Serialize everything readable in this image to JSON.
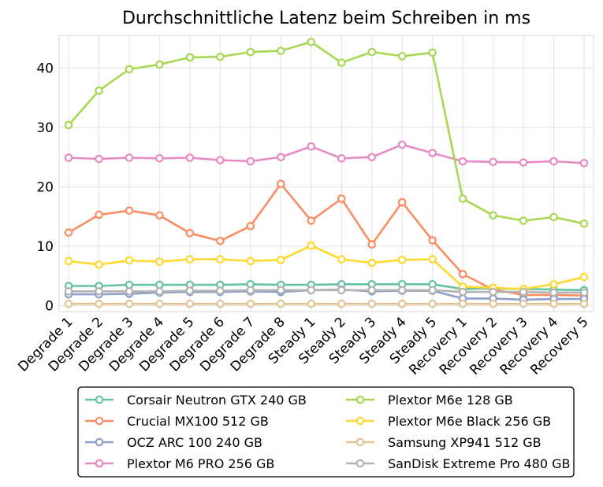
{
  "chart_data": {
    "type": "line",
    "title": "Durchschnittliche Latenz beim Schreiben in ms",
    "xlabel": "",
    "ylabel": "",
    "ylim": [
      -1,
      45.5
    ],
    "yticks": [
      0,
      10,
      20,
      30,
      40
    ],
    "grid": true,
    "legend_position": "bottom",
    "categories": [
      "Degrade 1",
      "Degrade 2",
      "Degrade 3",
      "Degrade 4",
      "Degrade 5",
      "Degrade 6",
      "Degrade 7",
      "Degrade 8",
      "Steady 1",
      "Steady 2",
      "Steady 3",
      "Steady 4",
      "Steady 5",
      "Recovery 1",
      "Recovery 2",
      "Recovery 3",
      "Recovery 4",
      "Recovery 5"
    ],
    "series": [
      {
        "name": "Corsair Neutron GTX 240 GB",
        "color": "#66c2a5",
        "values": [
          3.3,
          3.3,
          3.5,
          3.5,
          3.5,
          3.5,
          3.6,
          3.5,
          3.5,
          3.6,
          3.6,
          3.6,
          3.6,
          2.8,
          2.9,
          2.8,
          2.7,
          2.6
        ]
      },
      {
        "name": "Crucial MX100 512 GB",
        "color": "#fc8d62",
        "values": [
          12.3,
          15.3,
          16.0,
          15.2,
          12.2,
          10.9,
          13.4,
          20.5,
          14.3,
          18.0,
          10.3,
          17.4,
          11.0,
          5.3,
          2.7,
          1.8,
          1.8,
          1.7
        ]
      },
      {
        "name": "OCZ ARC 100 240 GB",
        "color": "#8da0cb",
        "values": [
          1.9,
          1.9,
          2.0,
          2.2,
          2.3,
          2.3,
          2.4,
          2.3,
          2.6,
          2.7,
          2.4,
          2.5,
          2.5,
          1.2,
          1.2,
          1.0,
          1.1,
          1.1
        ]
      },
      {
        "name": "Plextor M6 PRO 256 GB",
        "color": "#e78ac3",
        "values": [
          24.9,
          24.7,
          24.9,
          24.8,
          24.9,
          24.5,
          24.3,
          25.0,
          26.8,
          24.8,
          25.0,
          27.1,
          25.7,
          24.3,
          24.2,
          24.1,
          24.3,
          24.0
        ]
      },
      {
        "name": "Plextor M6e 128 GB",
        "color": "#a6d854",
        "values": [
          30.4,
          36.2,
          39.8,
          40.6,
          41.8,
          41.9,
          42.7,
          42.9,
          44.4,
          40.9,
          42.7,
          42.0,
          42.6,
          18.0,
          15.2,
          14.3,
          14.9,
          13.8
        ]
      },
      {
        "name": "Plextor M6e Black 256 GB",
        "color": "#ffd92f",
        "values": [
          7.5,
          6.9,
          7.6,
          7.4,
          7.8,
          7.8,
          7.5,
          7.7,
          10.1,
          7.8,
          7.2,
          7.7,
          7.8,
          3.2,
          3.0,
          2.8,
          3.6,
          4.8
        ]
      },
      {
        "name": "Samsung XP941 512 GB",
        "color": "#e5c494",
        "values": [
          0.3,
          0.3,
          0.3,
          0.3,
          0.3,
          0.3,
          0.3,
          0.3,
          0.3,
          0.3,
          0.3,
          0.3,
          0.3,
          0.3,
          0.3,
          0.3,
          0.3,
          0.3
        ]
      },
      {
        "name": "SanDisk Extreme Pro 480 GB",
        "color": "#b3b3b3",
        "values": [
          2.4,
          2.4,
          2.4,
          2.4,
          2.5,
          2.5,
          2.6,
          2.6,
          2.6,
          2.6,
          2.6,
          2.6,
          2.6,
          2.3,
          2.3,
          2.3,
          2.2,
          2.2
        ]
      }
    ]
  }
}
